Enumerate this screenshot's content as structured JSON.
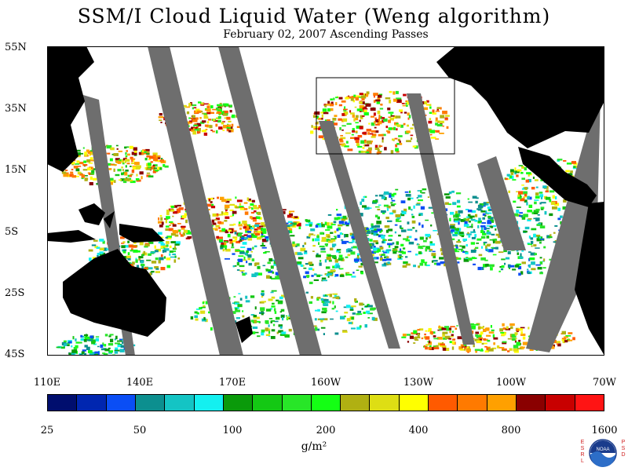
{
  "title": "SSM/I Cloud Liquid Water (Weng algorithm)",
  "subtitle": "February 02, 2007  Ascending Passes",
  "map": {
    "lat_labels": [
      "55N",
      "35N",
      "15N",
      "5S",
      "25S",
      "45S"
    ],
    "lon_labels": [
      "110E",
      "140E",
      "170E",
      "160W",
      "130W",
      "100W",
      "70W"
    ],
    "colors": {
      "land": "#000000",
      "no_data_swath_gap": "#6e6e6e",
      "clear_ocean": "#ffffff",
      "box_outline": "#000000"
    }
  },
  "colorbar": {
    "bins": [
      "#000e6e",
      "#0026b0",
      "#0a4ef5",
      "#0c8f8f",
      "#14c4c4",
      "#14f0f0",
      "#0a9a0a",
      "#14c814",
      "#28e628",
      "#14ff14",
      "#b0b012",
      "#dede14",
      "#ffff00",
      "#ff5a00",
      "#ff7a00",
      "#ffa000",
      "#8a0000",
      "#c80000",
      "#ff1414"
    ],
    "tick_labels": [
      "25",
      "50",
      "100",
      "200",
      "400",
      "800",
      "1600"
    ],
    "units": "g/m²"
  },
  "logo": {
    "left_letters": "ESRL",
    "right_letters": "PSD",
    "center_text": "NOAA"
  }
}
